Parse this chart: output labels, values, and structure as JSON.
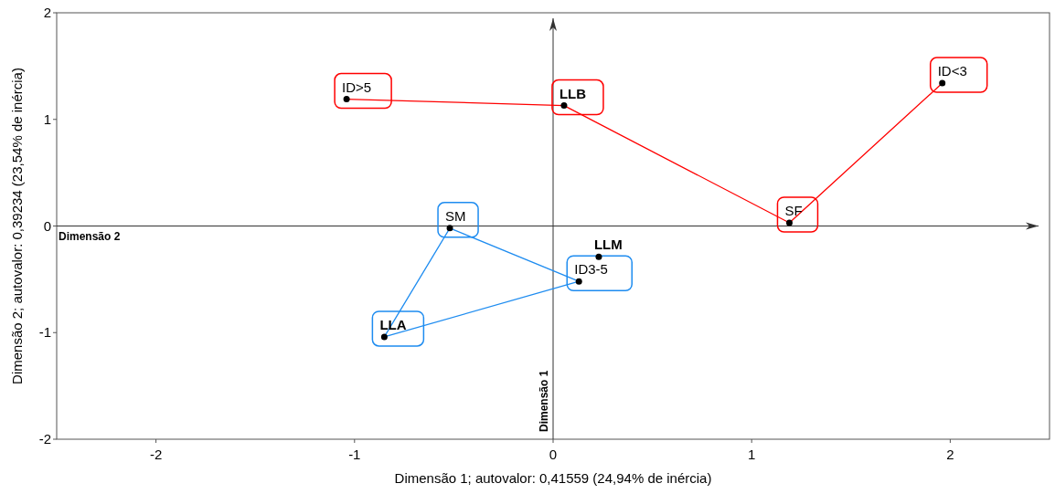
{
  "chart_data": {
    "type": "scatter",
    "xlabel": "Dimensão 1; autovalor: 0,41559 (24,94% de inércia)",
    "ylabel": "Dimensão 2; autovalor: 0,39234 (23,54% de inércia)",
    "xlim": [
      -2.5,
      2.5
    ],
    "xticks": [
      -2,
      -1,
      0,
      1,
      2
    ],
    "ylim": [
      -2,
      2
    ],
    "yticks": [
      -2,
      -1,
      0,
      1,
      2
    ],
    "series": [
      {
        "marker": "circle",
        "color": "#000000",
        "x": [
          0.055,
          -0.85,
          0.23
        ],
        "values": [
          1.13,
          -1.04,
          -0.29
        ]
      },
      {
        "marker": "circle",
        "color": "#000000",
        "x": [
          -1.04,
          1.96,
          1.19,
          -0.52,
          0.13
        ],
        "values": [
          1.19,
          1.34,
          0.03,
          -0.02,
          -0.52
        ]
      },
      {
        "type": "line",
        "marker": "none",
        "color": "#ff0000",
        "x": [
          -1.04,
          0.055,
          1.19,
          1.96
        ],
        "values": [
          1.19,
          1.13,
          0.03,
          1.34
        ]
      },
      {
        "type": "line",
        "marker": "none",
        "color": "#1e8cf0",
        "x": [
          -0.85,
          -0.52,
          0.13
        ],
        "values": [
          -1.04,
          -0.02,
          -0.52
        ]
      },
      {
        "type": "line",
        "marker": "none",
        "color": "#1e8cf0",
        "x": [
          -0.85,
          0.13
        ],
        "values": [
          -1.04,
          -0.52
        ]
      }
    ],
    "annotations": [
      "Dimensão 2",
      "Dimensão 1",
      {
        "text": "LLB",
        "x": 0.055,
        "y": 1.13
      },
      {
        "text": "LLA",
        "x": -0.85,
        "y": -1.04
      },
      {
        "text": "LLM",
        "x": 0.23,
        "y": -0.29
      },
      {
        "text": "ID>5",
        "x": -1.04,
        "y": 1.19
      },
      {
        "text": "ID<3",
        "x": 1.96,
        "y": 1.34
      },
      {
        "text": "SF",
        "x": 1.19,
        "y": 0.03
      },
      {
        "text": "SM",
        "x": -0.52,
        "y": -0.02
      },
      {
        "text": "ID3-5",
        "x": 0.13,
        "y": -0.52
      }
    ]
  }
}
